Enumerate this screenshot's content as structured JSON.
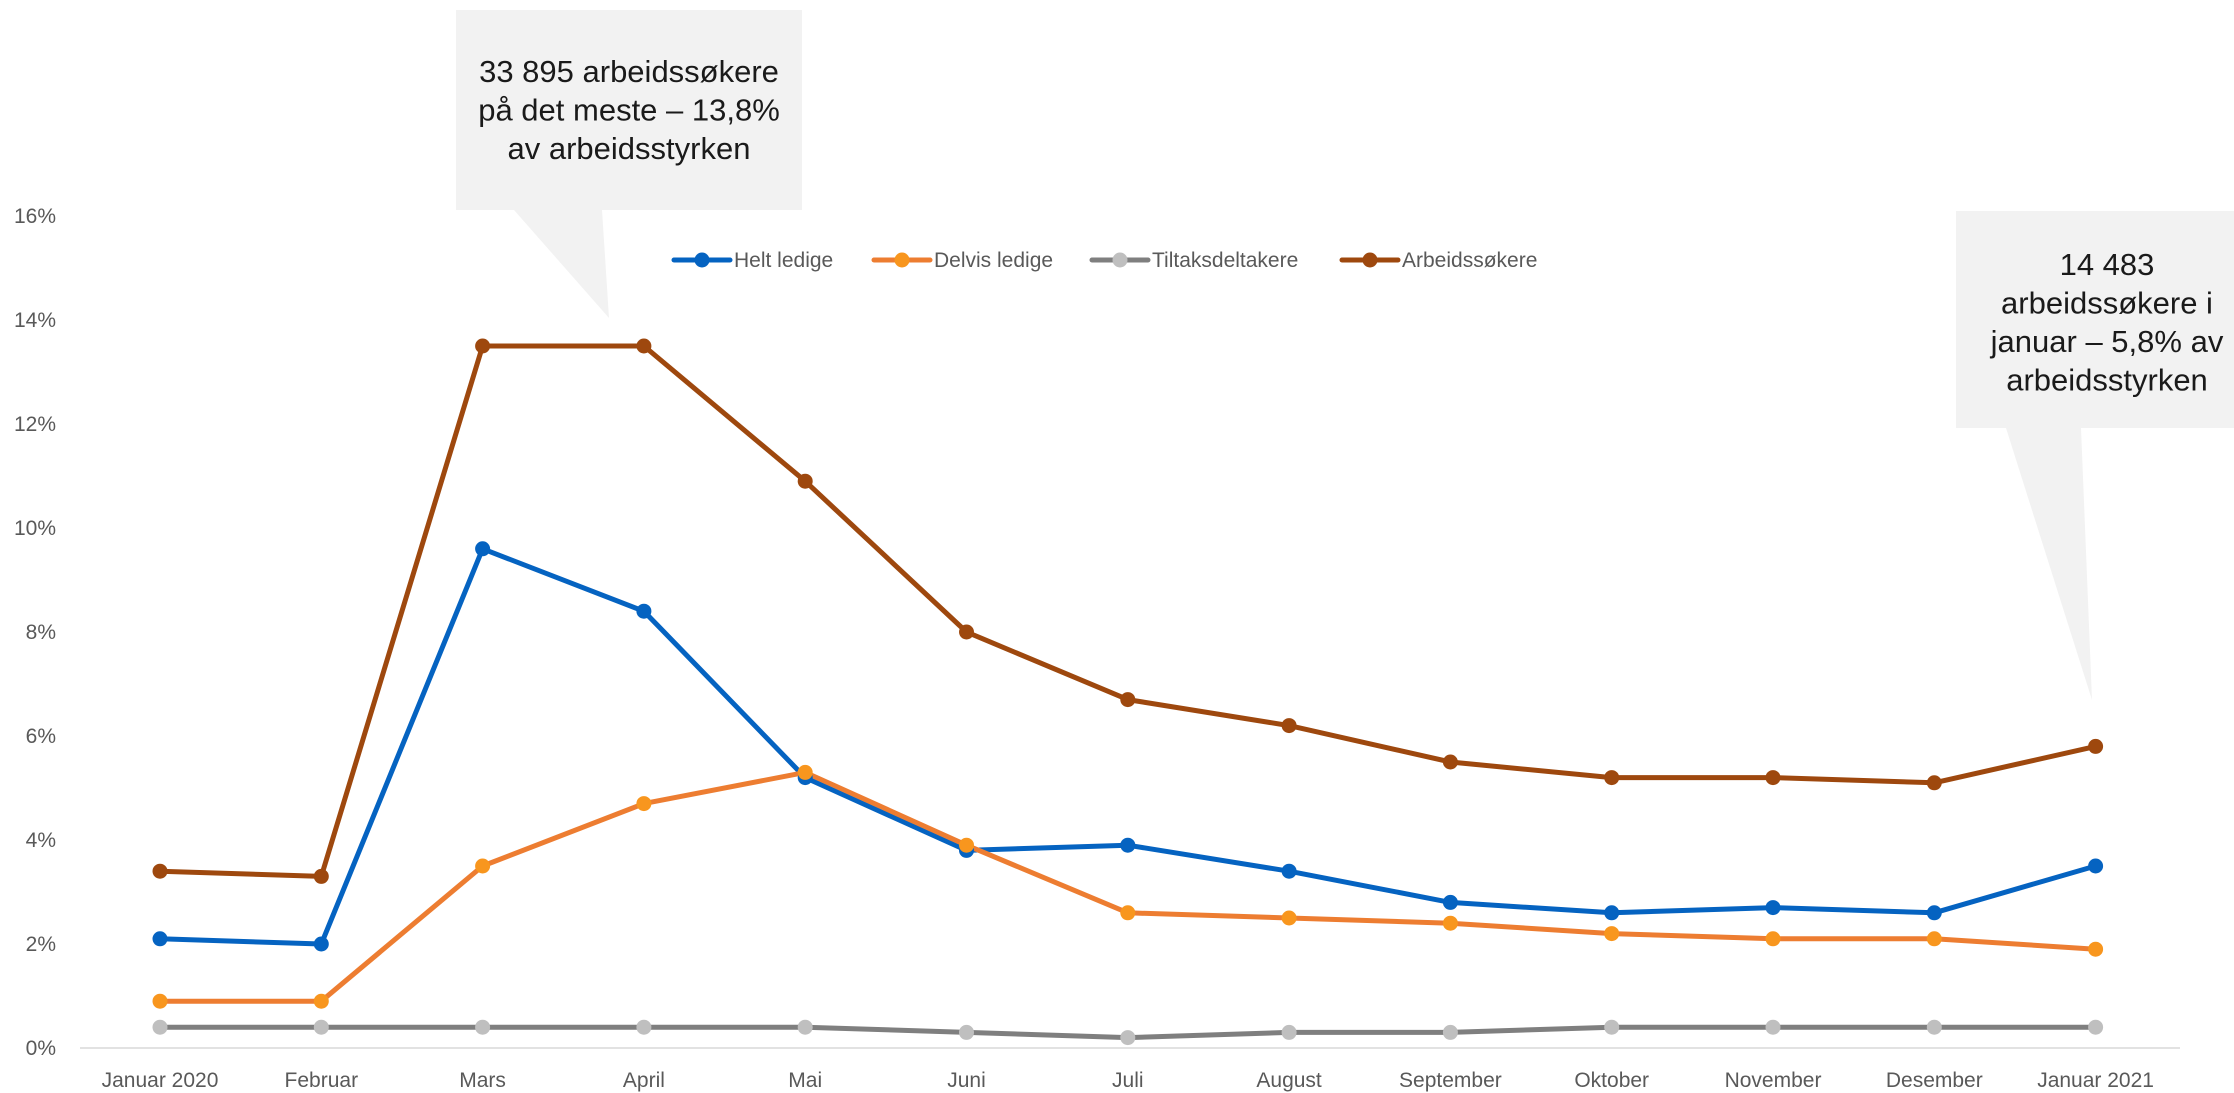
{
  "chart_data": {
    "type": "line",
    "title": "",
    "xlabel": "",
    "ylabel": "",
    "categories": [
      "Januar 2020",
      "Februar",
      "Mars",
      "April",
      "Mai",
      "Juni",
      "Juli",
      "August",
      "September",
      "Oktober",
      "November",
      "Desember",
      "Januar 2021"
    ],
    "ylim": [
      0,
      16
    ],
    "y_ticks": [
      "0%",
      "2%",
      "4%",
      "6%",
      "8%",
      "10%",
      "12%",
      "14%",
      "16%"
    ],
    "grid": false,
    "legend_position": "top",
    "series": [
      {
        "name": "Helt ledige",
        "color": "#0563C1",
        "values": [
          2.1,
          2.0,
          9.6,
          8.4,
          5.2,
          3.8,
          3.9,
          3.4,
          2.8,
          2.6,
          2.7,
          2.6,
          3.5
        ]
      },
      {
        "name": "Delvis ledige",
        "color": "#ED7D31",
        "marker_color": "#F8961E",
        "values": [
          0.9,
          0.9,
          3.5,
          4.7,
          5.3,
          3.9,
          2.6,
          2.5,
          2.4,
          2.2,
          2.1,
          2.1,
          1.9
        ]
      },
      {
        "name": "Tiltaksdeltakere",
        "color": "#7F7F7F",
        "marker_color": "#BFBFBF",
        "values": [
          0.4,
          0.4,
          0.4,
          0.4,
          0.4,
          0.3,
          0.2,
          0.3,
          0.3,
          0.4,
          0.4,
          0.4,
          0.4
        ]
      },
      {
        "name": "Arbeidssøkere",
        "color": "#9E480E",
        "values": [
          3.4,
          3.3,
          13.5,
          13.5,
          10.9,
          8.0,
          6.7,
          6.2,
          5.5,
          5.2,
          5.2,
          5.1,
          5.8
        ]
      }
    ],
    "annotations": [
      {
        "id": "peak",
        "lines": [
          "33 895 arbeidssøkere",
          "på det meste – 13,8%",
          "av arbeidsstyrken"
        ]
      },
      {
        "id": "latest",
        "lines": [
          "14 483",
          "arbeidssøkere i",
          "januar – 5,8% av",
          "arbeidsstyrken"
        ]
      }
    ]
  }
}
